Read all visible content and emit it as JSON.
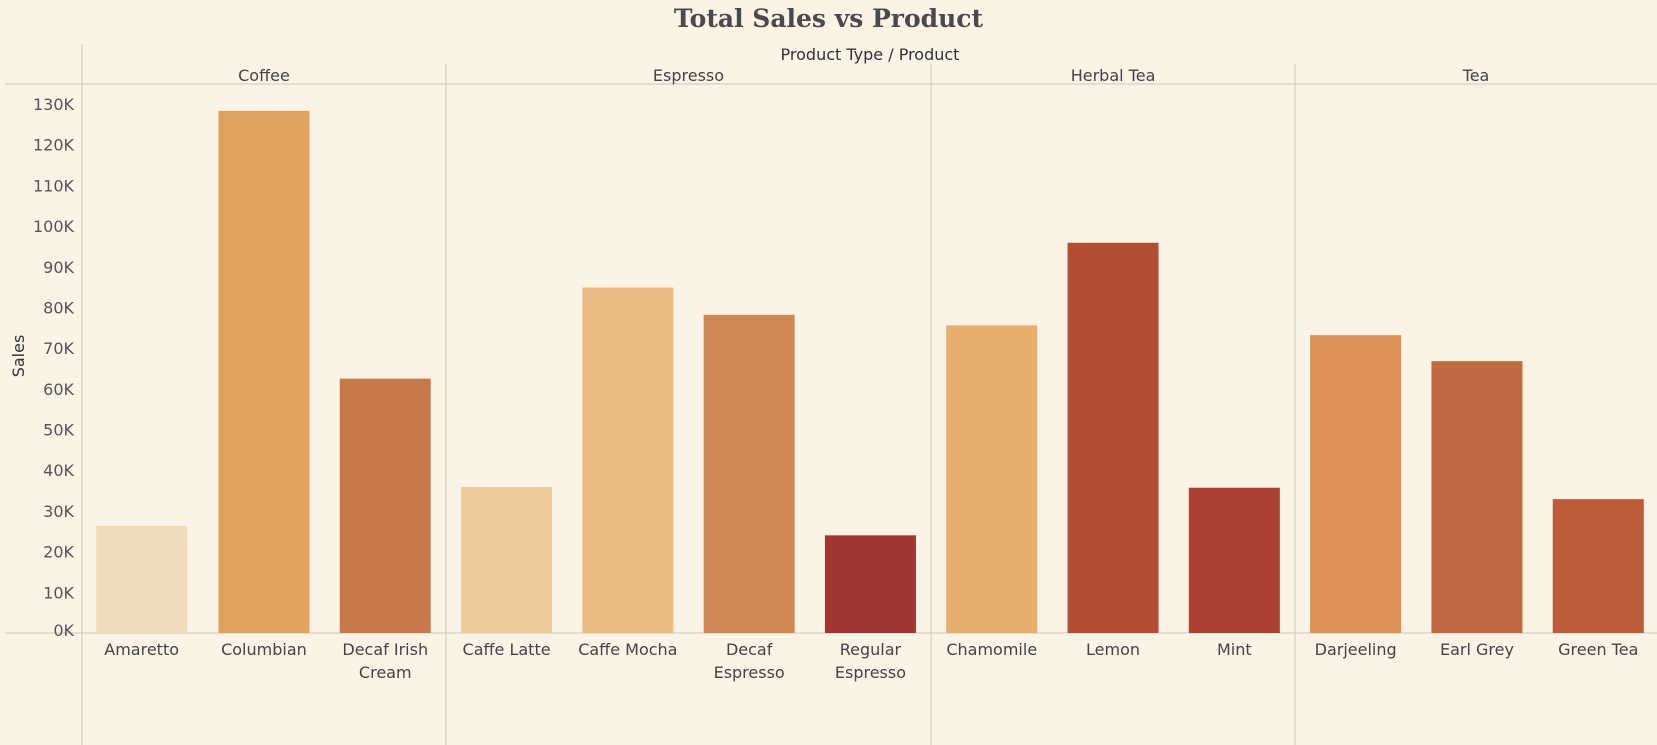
{
  "chart_data": {
    "type": "bar",
    "title": "Total Sales vs Product",
    "column_header": "Product Type  /  Product",
    "ylabel": "Sales",
    "ylim": [
      0,
      135000
    ],
    "yticks": [
      0,
      10000,
      20000,
      30000,
      40000,
      50000,
      60000,
      70000,
      80000,
      90000,
      100000,
      110000,
      120000,
      130000
    ],
    "ytick_labels": [
      "0K",
      "10K",
      "20K",
      "30K",
      "40K",
      "50K",
      "60K",
      "70K",
      "80K",
      "90K",
      "100K",
      "110K",
      "120K",
      "130K"
    ],
    "grid": false,
    "groups": [
      {
        "name": "Coffee",
        "products": [
          {
            "name": "Amaretto",
            "value": 26300,
            "color": "#efdcbc"
          },
          {
            "name": "Columbian",
            "value": 128300,
            "color": "#e1a25d"
          },
          {
            "name": "Decaf Irish Cream",
            "value": 62500,
            "color": "#c87949"
          }
        ]
      },
      {
        "name": "Espresso",
        "products": [
          {
            "name": "Caffe Latte",
            "value": 35900,
            "color": "#edcb9d"
          },
          {
            "name": "Caffe Mocha",
            "value": 84900,
            "color": "#eabb80"
          },
          {
            "name": "Decaf Espresso",
            "value": 78200,
            "color": "#d18752"
          },
          {
            "name": "Regular Espresso",
            "value": 24000,
            "color": "#a03531"
          }
        ]
      },
      {
        "name": "Herbal Tea",
        "products": [
          {
            "name": "Chamomile",
            "value": 75600,
            "color": "#e6af6e"
          },
          {
            "name": "Lemon",
            "value": 95900,
            "color": "#b34e34"
          },
          {
            "name": "Mint",
            "value": 35700,
            "color": "#ac4033"
          }
        ]
      },
      {
        "name": "Tea",
        "products": [
          {
            "name": "Darjeeling",
            "value": 73200,
            "color": "#dc9254"
          },
          {
            "name": "Earl Grey",
            "value": 66800,
            "color": "#c16a41"
          },
          {
            "name": "Green Tea",
            "value": 32900,
            "color": "#bd5c3b"
          }
        ]
      }
    ]
  }
}
